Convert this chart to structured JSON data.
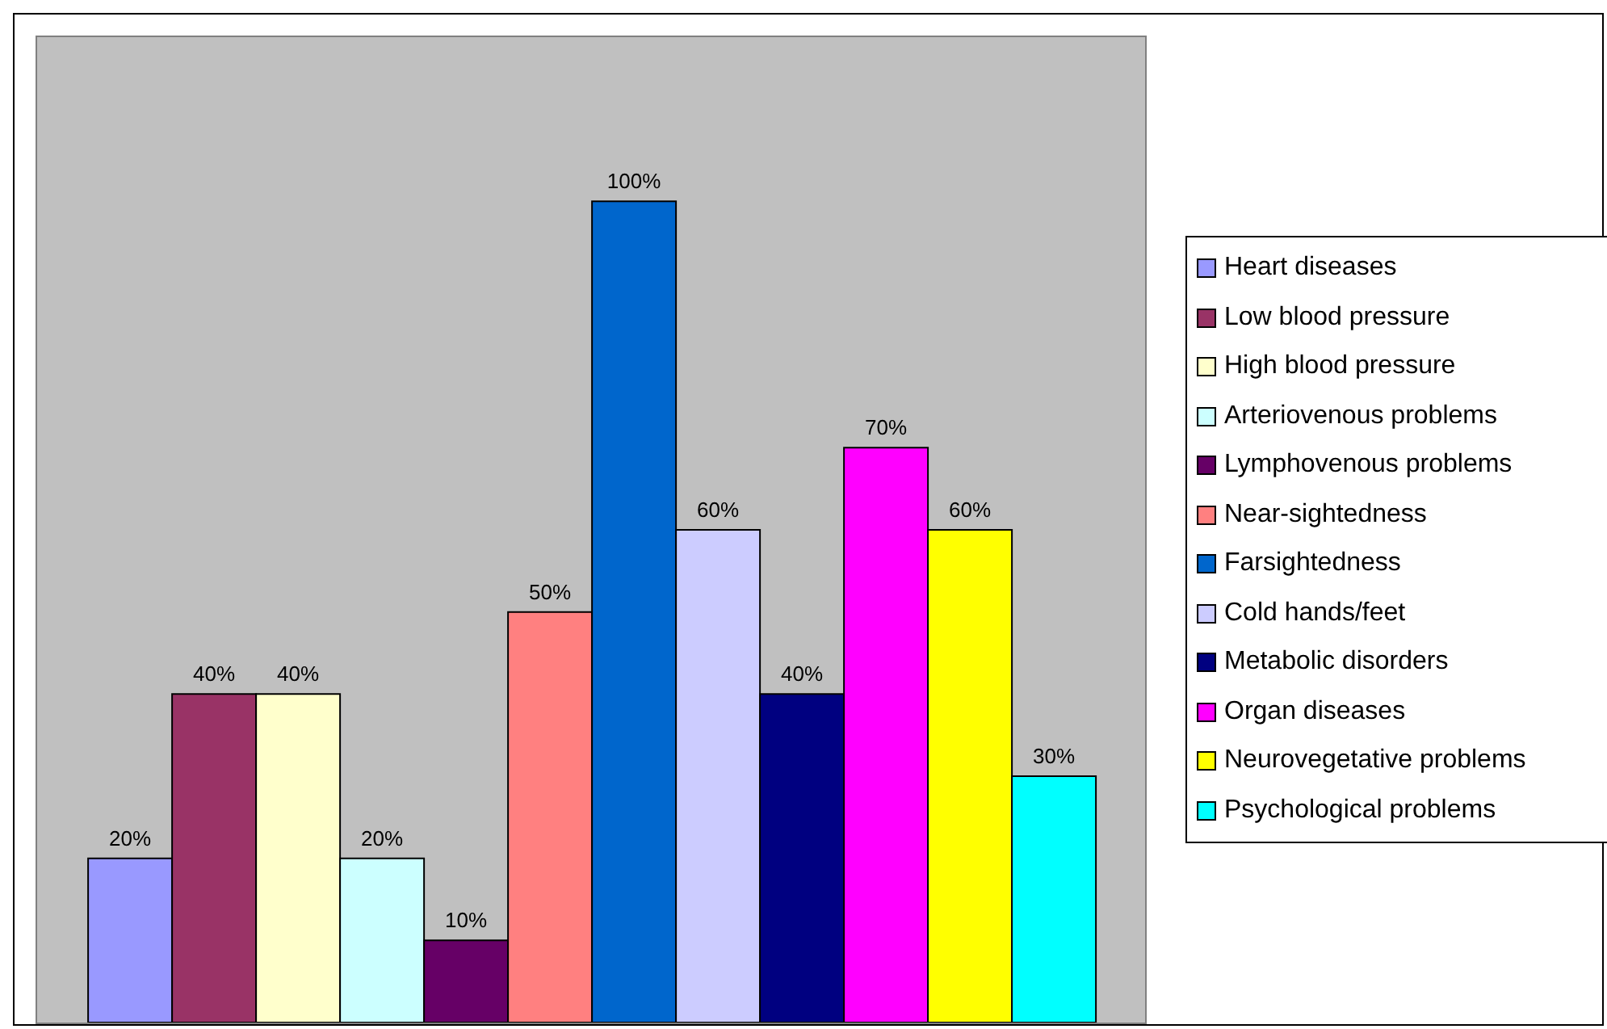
{
  "chart_data": {
    "type": "bar",
    "categories": [
      null
    ],
    "ylim": [
      0,
      120
    ],
    "legend": "right",
    "series": [
      {
        "name": "Heart diseases",
        "color": "#9999ff",
        "values": [
          20
        ],
        "value_labels": [
          "20%"
        ]
      },
      {
        "name": "Low blood pressure",
        "color": "#993366",
        "values": [
          40
        ],
        "value_labels": [
          "40%"
        ]
      },
      {
        "name": "High blood pressure",
        "color": "#ffffcc",
        "values": [
          40
        ],
        "value_labels": [
          "40%"
        ]
      },
      {
        "name": "Arteriovenous problems",
        "color": "#ccffff",
        "values": [
          20
        ],
        "value_labels": [
          "20%"
        ]
      },
      {
        "name": "Lymphovenous problems",
        "color": "#660066",
        "values": [
          10
        ],
        "value_labels": [
          "10%"
        ]
      },
      {
        "name": "Near-sightedness",
        "color": "#ff8080",
        "values": [
          50
        ],
        "value_labels": [
          "50%"
        ]
      },
      {
        "name": "Farsightedness",
        "color": "#0066cc",
        "values": [
          100
        ],
        "value_labels": [
          "100%"
        ]
      },
      {
        "name": "Cold hands/feet",
        "color": "#ccccff",
        "values": [
          60
        ],
        "value_labels": [
          "60%"
        ]
      },
      {
        "name": "Metabolic disorders",
        "color": "#000080",
        "values": [
          40
        ],
        "value_labels": [
          "40%"
        ]
      },
      {
        "name": "Organ diseases",
        "color": "#ff00ff",
        "values": [
          70
        ],
        "value_labels": [
          "70%"
        ]
      },
      {
        "name": "Neurovegetative problems",
        "color": "#ffff00",
        "values": [
          60
        ],
        "value_labels": [
          "60%"
        ]
      },
      {
        "name": "Psychological problems",
        "color": "#00ffff",
        "values": [
          30
        ],
        "value_labels": [
          "30%"
        ]
      }
    ]
  }
}
